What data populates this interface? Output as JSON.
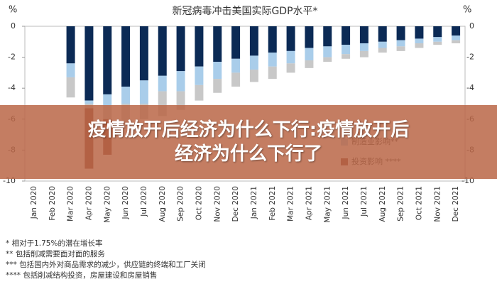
{
  "chart_data": {
    "type": "stacked-bar",
    "title": "新冠病毒冲击美国实际GDP水平*",
    "y_unit": "%",
    "categories": [
      "Jan 2020",
      "Feb 2020",
      "Mar 2020",
      "Apr 2020",
      "May 2020",
      "Jun 2020",
      "Jul 2020",
      "Aug 2020",
      "Sep 2020",
      "Oct 2020",
      "Nov 2020",
      "Dec 2020",
      "Jan 2021",
      "Feb 2021",
      "Mar 2021",
      "Apr 2021",
      "May 2021",
      "Jun 2021",
      "Jul 2021",
      "Aug 2021",
      "Sep 2021",
      "Oct 2021",
      "Nov 2021",
      "Dec 2021"
    ],
    "series": [
      {
        "color": "#0b2a55",
        "values": [
          0,
          0,
          -2.4,
          -4.8,
          -4.4,
          -3.9,
          -3.5,
          -3.2,
          -2.9,
          -2.6,
          -2.3,
          -2.1,
          -1.9,
          -1.7,
          -1.6,
          -1.4,
          -1.3,
          -1.2,
          -1.1,
          -1.0,
          -0.9,
          -0.8,
          -0.7,
          -0.6
        ]
      },
      {
        "name": "制造业影响**",
        "color": "#a9cdea",
        "values": [
          0,
          0,
          -0.9,
          -0.2,
          -0.8,
          -1.1,
          -1.5,
          -1.0,
          -1.3,
          -1.2,
          -1.1,
          -0.9,
          -0.9,
          -0.9,
          -0.8,
          -0.8,
          -0.7,
          -0.6,
          -0.5,
          -0.4,
          -0.4,
          -0.3,
          -0.3,
          -0.3
        ]
      },
      {
        "color": "#c8c8c8",
        "values": [
          0,
          0,
          -1.3,
          -0.3,
          -0.8,
          -1.3,
          -1.0,
          -1.6,
          -1.2,
          -1.0,
          -0.9,
          -0.9,
          -0.8,
          -0.8,
          -0.6,
          -0.5,
          -0.3,
          -0.3,
          -0.4,
          -0.3,
          -0.3,
          -0.3,
          -0.2,
          -0.2
        ]
      },
      {
        "name": "投资影响 ****",
        "color": "#8a3a2e",
        "values": [
          0,
          0,
          0,
          -3.9,
          -2.3,
          0,
          0,
          0,
          0,
          0,
          0,
          0,
          0,
          0,
          0,
          0,
          0,
          0,
          0,
          0,
          0,
          0,
          0,
          0
        ]
      }
    ],
    "ylim": [
      -10,
      0
    ],
    "yticks": [
      0,
      -2,
      -4,
      -6,
      -8,
      -10
    ],
    "notes": [
      "* 相对于1.75%的潜在增长率",
      "** 包括削减需要面对面的服务",
      "*** 包括国内外对商品需求的减少，供应链的终端和工厂关闭",
      "**** 包括削减结构投资，房屋建设和房屋销售"
    ]
  },
  "banner": {
    "lines": [
      "疫情放开后经济为什么下行:疫情放开后",
      "经济为什么下行了"
    ]
  }
}
